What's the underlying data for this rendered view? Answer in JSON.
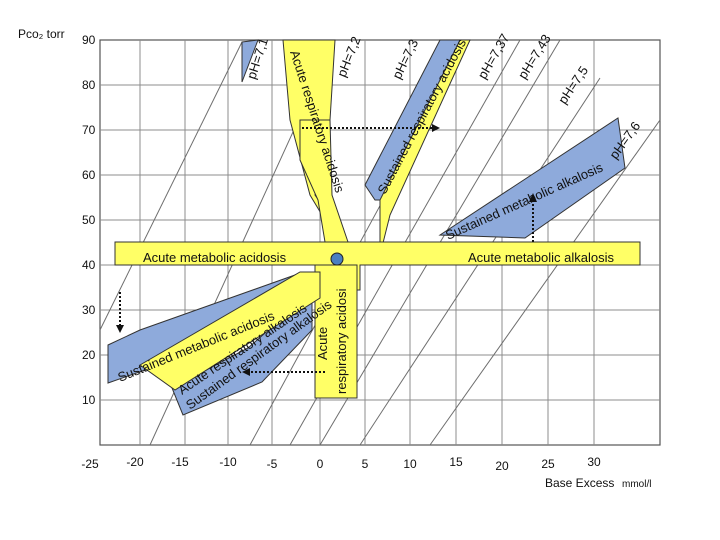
{
  "axes": {
    "y_label": "Pco₂ torr",
    "x_label_main": "Base Excess",
    "x_label_unit": "mmol/l",
    "y_ticks": [
      "90",
      "80",
      "70",
      "60",
      "50",
      "40",
      "30",
      "20",
      "10"
    ],
    "x_ticks": [
      "-25",
      "-20",
      "-15",
      "-10",
      "-5",
      "0",
      "5",
      "10",
      "15",
      "20",
      "25",
      "30"
    ]
  },
  "regions": {
    "acute_resp_acidosis_top": "Acute respiratory acidosis",
    "sustained_resp_acidosis": "Sustained respiratory acidosis",
    "sustained_met_alkalosis": "Sustained metabolic alkalosis",
    "acute_met_acidosis": "Acute metabolic acidosis",
    "acute_met_alkalosis": "Acute metabolic alkalosis",
    "acute_resp_alkalosis": "Acute respiratory alkalosis",
    "acute_resp_acidosis_lower_1": "Acute",
    "acute_resp_acidosis_lower_2": "respiratory acidosi",
    "sustained_met_acidosis": "Sustained metabolic acidosis",
    "sustained_resp_alkalosis": "Sustained respiratory alkalosis"
  },
  "ph_lines": [
    "pH=7,1",
    "pH=7,2",
    "pH=7,3",
    "pH=7,37",
    "pH=7,43",
    "pH=7,5",
    "pH=7,6"
  ],
  "colors": {
    "yellow": "#ffff66",
    "blue": "#8eaadb",
    "grid": "#8c8c8c",
    "normal_dot": "#4a7fc1"
  }
}
